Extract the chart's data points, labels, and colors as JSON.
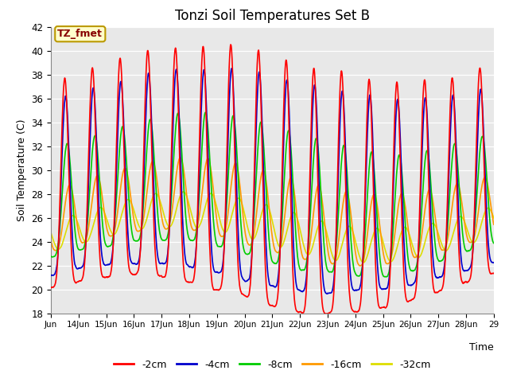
{
  "title": "Tonzi Soil Temperatures Set B",
  "xlabel": "Time",
  "ylabel": "Soil Temperature (C)",
  "ylim": [
    18,
    42
  ],
  "annotation_text": "TZ_fmet",
  "annotation_bg": "#ffffcc",
  "annotation_border": "#bb9900",
  "bg_color": "#e8e8e8",
  "legend_labels": [
    "-2cm",
    "-4cm",
    "-8cm",
    "-16cm",
    "-32cm"
  ],
  "legend_colors": [
    "#ff0000",
    "#0000cc",
    "#00cc00",
    "#ff9900",
    "#dddd00"
  ],
  "line_width": 1.2,
  "xtick_labels": [
    "Jun",
    "14Jun",
    "15Jun",
    "16Jun",
    "17Jun",
    "18Jun",
    "19Jun",
    "20Jun",
    "21Jun",
    "22Jun",
    "23Jun",
    "24Jun",
    "25Jun",
    "26Jun",
    "27Jun",
    "28Jun",
    "29"
  ],
  "ytick_vals": [
    18,
    20,
    22,
    24,
    26,
    28,
    30,
    32,
    34,
    36,
    38,
    40,
    42
  ]
}
